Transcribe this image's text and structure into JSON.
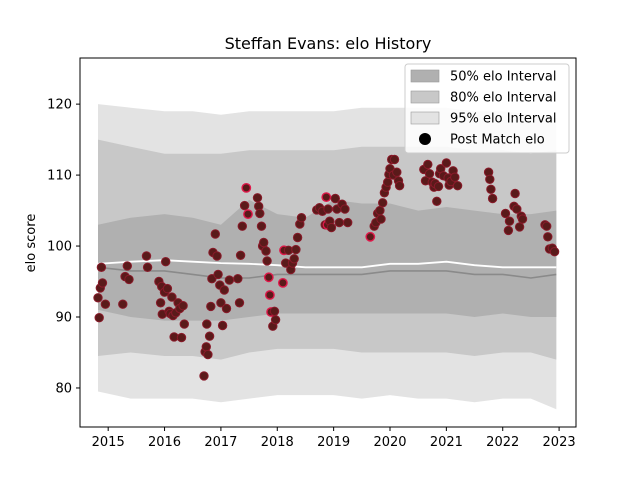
{
  "chart_data": {
    "type": "scatter",
    "title": "Steffan Evans: elo History",
    "xlabel": "",
    "ylabel": "elo score",
    "xlim": [
      2014.5,
      2023.3
    ],
    "ylim": [
      74.5,
      126.5
    ],
    "x_ticks": [
      "2015",
      "2016",
      "2017",
      "2018",
      "2019",
      "2020",
      "2021",
      "2022",
      "2023"
    ],
    "y_ticks": [
      "80",
      "90",
      "100",
      "110",
      "120"
    ],
    "legend_position": "top-right",
    "legend": [
      {
        "label": "50% elo Interval",
        "kind": "band",
        "color": "#b0b0b0"
      },
      {
        "label": "80% elo Interval",
        "kind": "band",
        "color": "#c8c8c8"
      },
      {
        "label": "95% elo Interval",
        "kind": "band",
        "color": "#e3e3e3"
      },
      {
        "label": "Post Match elo",
        "kind": "marker",
        "color": "#000000"
      }
    ],
    "colors": {
      "band50": "#b0b0b0",
      "band80": "#c8c8c8",
      "band95": "#e3e3e3",
      "median_line": "#8a8a8a",
      "mean_line": "#ffffff",
      "point_fill": "#5a1a1a",
      "point_edge": "#8a1a2a",
      "point_edge_highlight": "#e0184a"
    },
    "bands": {
      "x": [
        2014.82,
        2015.4,
        2016.0,
        2016.5,
        2017.0,
        2017.5,
        2018.0,
        2018.5,
        2019.0,
        2019.5,
        2020.0,
        2020.5,
        2021.0,
        2021.5,
        2022.0,
        2022.5,
        2022.95
      ],
      "p95_low": [
        79.5,
        78.5,
        78.5,
        78.5,
        78.0,
        78.5,
        79.0,
        79.0,
        79.0,
        78.5,
        79.0,
        78.5,
        78.5,
        78.0,
        78.5,
        78.5,
        77.0
      ],
      "p95_high": [
        120.0,
        119.5,
        119.0,
        119.0,
        118.5,
        119.0,
        119.0,
        119.0,
        119.0,
        119.5,
        119.5,
        119.5,
        119.5,
        119.0,
        119.0,
        118.5,
        118.0
      ],
      "p80_low": [
        84.5,
        85.0,
        84.5,
        84.5,
        84.0,
        85.0,
        85.5,
        85.5,
        85.5,
        85.0,
        85.0,
        85.0,
        85.0,
        84.5,
        85.0,
        85.0,
        84.0
      ],
      "p80_high": [
        115.0,
        114.0,
        113.0,
        113.0,
        113.0,
        113.5,
        113.5,
        113.5,
        113.5,
        114.0,
        114.0,
        114.0,
        114.0,
        113.5,
        113.5,
        113.0,
        113.5
      ],
      "p50_low": [
        91.0,
        90.0,
        89.5,
        89.5,
        89.5,
        90.0,
        90.5,
        90.5,
        90.5,
        90.5,
        90.5,
        90.5,
        90.5,
        90.0,
        90.5,
        90.0,
        90.0
      ],
      "p50_high": [
        103.0,
        104.0,
        104.5,
        104.0,
        103.0,
        106.5,
        104.5,
        104.0,
        106.5,
        106.0,
        106.0,
        105.0,
        105.5,
        105.0,
        104.5,
        104.5,
        105.0
      ],
      "median": [
        97.0,
        96.5,
        96.5,
        96.0,
        95.5,
        95.5,
        96.0,
        96.0,
        96.0,
        96.0,
        96.5,
        96.5,
        96.5,
        96.0,
        96.0,
        95.5,
        96.0
      ],
      "mean": [
        97.5,
        97.8,
        98.0,
        97.8,
        97.6,
        97.5,
        97.3,
        97.0,
        97.0,
        97.0,
        97.5,
        97.5,
        97.8,
        97.3,
        97.0,
        97.0,
        97.0
      ]
    },
    "points": [
      {
        "x": 2014.82,
        "y": 92.7
      },
      {
        "x": 2014.84,
        "y": 89.9
      },
      {
        "x": 2014.86,
        "y": 94.1
      },
      {
        "x": 2014.88,
        "y": 97.0
      },
      {
        "x": 2014.9,
        "y": 94.8
      },
      {
        "x": 2014.95,
        "y": 91.8
      },
      {
        "x": 2015.26,
        "y": 91.8
      },
      {
        "x": 2015.3,
        "y": 95.7
      },
      {
        "x": 2015.34,
        "y": 97.2
      },
      {
        "x": 2015.37,
        "y": 95.3
      },
      {
        "x": 2015.68,
        "y": 98.6
      },
      {
        "x": 2015.7,
        "y": 97.0
      },
      {
        "x": 2015.9,
        "y": 95.0
      },
      {
        "x": 2015.93,
        "y": 92.0
      },
      {
        "x": 2015.95,
        "y": 94.3
      },
      {
        "x": 2015.96,
        "y": 90.4
      },
      {
        "x": 2016.0,
        "y": 93.5
      },
      {
        "x": 2016.02,
        "y": 97.8
      },
      {
        "x": 2016.05,
        "y": 94.0
      },
      {
        "x": 2016.08,
        "y": 90.8
      },
      {
        "x": 2016.1,
        "y": 90.5
      },
      {
        "x": 2016.13,
        "y": 92.8
      },
      {
        "x": 2016.15,
        "y": 90.2
      },
      {
        "x": 2016.17,
        "y": 87.2
      },
      {
        "x": 2016.2,
        "y": 90.6
      },
      {
        "x": 2016.24,
        "y": 92.0
      },
      {
        "x": 2016.27,
        "y": 91.2
      },
      {
        "x": 2016.3,
        "y": 87.1
      },
      {
        "x": 2016.33,
        "y": 91.6
      },
      {
        "x": 2016.35,
        "y": 89.0
      },
      {
        "x": 2016.7,
        "y": 81.7
      },
      {
        "x": 2016.72,
        "y": 85.1
      },
      {
        "x": 2016.74,
        "y": 85.8
      },
      {
        "x": 2016.77,
        "y": 84.7
      },
      {
        "x": 2016.75,
        "y": 89.0
      },
      {
        "x": 2016.8,
        "y": 87.3
      },
      {
        "x": 2016.82,
        "y": 91.5
      },
      {
        "x": 2016.84,
        "y": 95.4
      },
      {
        "x": 2016.86,
        "y": 99.1
      },
      {
        "x": 2016.9,
        "y": 101.7
      },
      {
        "x": 2016.93,
        "y": 98.6
      },
      {
        "x": 2016.95,
        "y": 96.0
      },
      {
        "x": 2016.98,
        "y": 94.5
      },
      {
        "x": 2017.0,
        "y": 92.0
      },
      {
        "x": 2017.03,
        "y": 88.8
      },
      {
        "x": 2017.06,
        "y": 93.8
      },
      {
        "x": 2017.1,
        "y": 91.2
      },
      {
        "x": 2017.15,
        "y": 95.2
      },
      {
        "x": 2017.3,
        "y": 95.4
      },
      {
        "x": 2017.33,
        "y": 92.0
      },
      {
        "x": 2017.35,
        "y": 98.7
      },
      {
        "x": 2017.38,
        "y": 102.8
      },
      {
        "x": 2017.42,
        "y": 105.7
      },
      {
        "x": 2017.45,
        "y": 108.2,
        "highlight": true
      },
      {
        "x": 2017.48,
        "y": 104.5,
        "highlight": true
      },
      {
        "x": 2017.65,
        "y": 106.8
      },
      {
        "x": 2017.67,
        "y": 105.6
      },
      {
        "x": 2017.69,
        "y": 104.6
      },
      {
        "x": 2017.72,
        "y": 102.8
      },
      {
        "x": 2017.74,
        "y": 100.0
      },
      {
        "x": 2017.76,
        "y": 100.5
      },
      {
        "x": 2017.8,
        "y": 99.3
      },
      {
        "x": 2017.82,
        "y": 97.9
      },
      {
        "x": 2017.85,
        "y": 95.6,
        "highlight": true
      },
      {
        "x": 2017.87,
        "y": 93.1,
        "highlight": true
      },
      {
        "x": 2017.89,
        "y": 90.7,
        "highlight": true
      },
      {
        "x": 2017.92,
        "y": 88.7
      },
      {
        "x": 2017.95,
        "y": 90.8
      },
      {
        "x": 2017.97,
        "y": 89.6
      },
      {
        "x": 2018.1,
        "y": 94.8,
        "highlight": true
      },
      {
        "x": 2018.12,
        "y": 99.4,
        "highlight": true
      },
      {
        "x": 2018.15,
        "y": 97.6
      },
      {
        "x": 2018.2,
        "y": 99.4
      },
      {
        "x": 2018.24,
        "y": 96.7
      },
      {
        "x": 2018.27,
        "y": 97.6
      },
      {
        "x": 2018.3,
        "y": 98.2
      },
      {
        "x": 2018.33,
        "y": 99.5
      },
      {
        "x": 2018.36,
        "y": 101.2
      },
      {
        "x": 2018.4,
        "y": 103.1
      },
      {
        "x": 2018.43,
        "y": 104.0
      },
      {
        "x": 2018.7,
        "y": 105.1
      },
      {
        "x": 2018.75,
        "y": 105.4
      },
      {
        "x": 2018.8,
        "y": 104.9
      },
      {
        "x": 2018.85,
        "y": 103.0
      },
      {
        "x": 2018.87,
        "y": 106.9,
        "highlight": true
      },
      {
        "x": 2018.89,
        "y": 103.0,
        "highlight": true
      },
      {
        "x": 2018.9,
        "y": 105.2
      },
      {
        "x": 2018.93,
        "y": 103.5
      },
      {
        "x": 2018.96,
        "y": 102.6
      },
      {
        "x": 2019.03,
        "y": 106.7
      },
      {
        "x": 2019.06,
        "y": 105.2
      },
      {
        "x": 2019.1,
        "y": 103.3
      },
      {
        "x": 2019.15,
        "y": 105.9
      },
      {
        "x": 2019.2,
        "y": 105.2
      },
      {
        "x": 2019.25,
        "y": 103.3
      },
      {
        "x": 2019.65,
        "y": 101.3,
        "highlight": true
      },
      {
        "x": 2019.72,
        "y": 102.8
      },
      {
        "x": 2019.75,
        "y": 103.3
      },
      {
        "x": 2019.78,
        "y": 104.6
      },
      {
        "x": 2019.82,
        "y": 105.0
      },
      {
        "x": 2019.84,
        "y": 103.8
      },
      {
        "x": 2019.87,
        "y": 106.1
      },
      {
        "x": 2019.9,
        "y": 107.5
      },
      {
        "x": 2019.93,
        "y": 108.3
      },
      {
        "x": 2019.96,
        "y": 109.0
      },
      {
        "x": 2019.98,
        "y": 110.1
      },
      {
        "x": 2020.0,
        "y": 110.9
      },
      {
        "x": 2020.03,
        "y": 112.2
      },
      {
        "x": 2020.06,
        "y": 110.0
      },
      {
        "x": 2020.08,
        "y": 112.2
      },
      {
        "x": 2020.12,
        "y": 110.4
      },
      {
        "x": 2020.15,
        "y": 109.2
      },
      {
        "x": 2020.17,
        "y": 108.5
      },
      {
        "x": 2020.6,
        "y": 110.8
      },
      {
        "x": 2020.63,
        "y": 109.2
      },
      {
        "x": 2020.67,
        "y": 111.5
      },
      {
        "x": 2020.7,
        "y": 110.2
      },
      {
        "x": 2020.75,
        "y": 109.0
      },
      {
        "x": 2020.78,
        "y": 108.3
      },
      {
        "x": 2020.8,
        "y": 108.8
      },
      {
        "x": 2020.83,
        "y": 106.3
      },
      {
        "x": 2020.86,
        "y": 108.4
      },
      {
        "x": 2020.88,
        "y": 110.2
      },
      {
        "x": 2020.9,
        "y": 110.9
      },
      {
        "x": 2020.95,
        "y": 109.9
      },
      {
        "x": 2021.0,
        "y": 111.7
      },
      {
        "x": 2021.03,
        "y": 109.6
      },
      {
        "x": 2021.05,
        "y": 108.6
      },
      {
        "x": 2021.08,
        "y": 109.1
      },
      {
        "x": 2021.12,
        "y": 110.6
      },
      {
        "x": 2021.15,
        "y": 109.7
      },
      {
        "x": 2021.2,
        "y": 108.5
      },
      {
        "x": 2021.75,
        "y": 110.4
      },
      {
        "x": 2021.77,
        "y": 109.4
      },
      {
        "x": 2021.79,
        "y": 108.0
      },
      {
        "x": 2021.82,
        "y": 106.7
      },
      {
        "x": 2022.05,
        "y": 104.6
      },
      {
        "x": 2022.1,
        "y": 102.2
      },
      {
        "x": 2022.12,
        "y": 103.5
      },
      {
        "x": 2022.2,
        "y": 105.6
      },
      {
        "x": 2022.22,
        "y": 107.4
      },
      {
        "x": 2022.25,
        "y": 105.2
      },
      {
        "x": 2022.3,
        "y": 102.7
      },
      {
        "x": 2022.33,
        "y": 104.2
      },
      {
        "x": 2022.35,
        "y": 103.8
      },
      {
        "x": 2022.75,
        "y": 103.0
      },
      {
        "x": 2022.78,
        "y": 102.8
      },
      {
        "x": 2022.8,
        "y": 101.3
      },
      {
        "x": 2022.83,
        "y": 99.6
      },
      {
        "x": 2022.88,
        "y": 99.7
      },
      {
        "x": 2022.92,
        "y": 99.2
      }
    ]
  }
}
